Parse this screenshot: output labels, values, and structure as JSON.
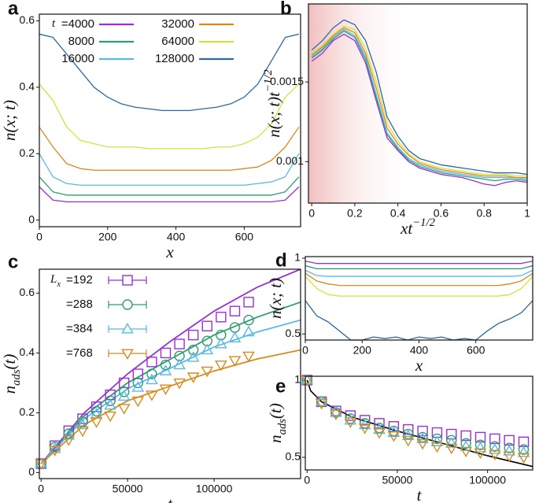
{
  "chart_data": [
    {
      "type": "line",
      "label": "a",
      "xlabel": {
        "text": "x"
      },
      "ylabel": {
        "text": "n(x; t)"
      },
      "xlim": [
        0,
        765
      ],
      "ylim": [
        -0.02,
        0.62
      ],
      "xticks": [
        0,
        200,
        400,
        600
      ],
      "yticks": [
        0,
        0.2,
        0.4,
        0.6
      ],
      "legend_prefix": {
        "text": "t"
      },
      "x": [
        0,
        40,
        80,
        120,
        160,
        200,
        240,
        280,
        320,
        360,
        400,
        440,
        480,
        520,
        560,
        600,
        640,
        680,
        720,
        760
      ],
      "series": [
        {
          "name": "=4000",
          "color": "#9a30d8",
          "values": [
            0.1,
            0.06,
            0.055,
            0.055,
            0.055,
            0.055,
            0.055,
            0.055,
            0.055,
            0.055,
            0.055,
            0.055,
            0.055,
            0.055,
            0.055,
            0.055,
            0.055,
            0.055,
            0.06,
            0.1
          ]
        },
        {
          "name": "8000",
          "color": "#2e9e70",
          "values": [
            0.13,
            0.085,
            0.075,
            0.075,
            0.075,
            0.075,
            0.075,
            0.075,
            0.075,
            0.075,
            0.075,
            0.075,
            0.075,
            0.075,
            0.075,
            0.075,
            0.075,
            0.075,
            0.085,
            0.13
          ]
        },
        {
          "name": "16000",
          "color": "#58b9e8",
          "values": [
            0.2,
            0.13,
            0.11,
            0.105,
            0.105,
            0.105,
            0.105,
            0.105,
            0.105,
            0.105,
            0.105,
            0.105,
            0.105,
            0.105,
            0.105,
            0.105,
            0.11,
            0.115,
            0.13,
            0.2
          ]
        },
        {
          "name": "32000",
          "color": "#d88a1c",
          "values": [
            0.28,
            0.22,
            0.17,
            0.155,
            0.15,
            0.15,
            0.15,
            0.15,
            0.15,
            0.15,
            0.15,
            0.15,
            0.15,
            0.15,
            0.15,
            0.155,
            0.16,
            0.18,
            0.22,
            0.28
          ]
        },
        {
          "name": "64000",
          "color": "#d8e03c",
          "values": [
            0.41,
            0.36,
            0.28,
            0.24,
            0.23,
            0.22,
            0.22,
            0.22,
            0.215,
            0.215,
            0.215,
            0.215,
            0.215,
            0.22,
            0.22,
            0.23,
            0.25,
            0.29,
            0.37,
            0.41
          ]
        },
        {
          "name": "128000",
          "color": "#2a68a6",
          "values": [
            0.56,
            0.55,
            0.5,
            0.45,
            0.4,
            0.37,
            0.35,
            0.34,
            0.335,
            0.33,
            0.33,
            0.33,
            0.335,
            0.34,
            0.35,
            0.37,
            0.41,
            0.48,
            0.55,
            0.56
          ]
        }
      ]
    },
    {
      "type": "line",
      "label": "b",
      "xlabel": {
        "text": "xt",
        "sup": "−1/2"
      },
      "ylabel": {
        "text": "n(x; t)t",
        "sup": "−1/2"
      },
      "xlim": [
        -0.015,
        1
      ],
      "ylim": [
        0.00074,
        0.00199
      ],
      "xticks": [
        0,
        0.2,
        0.4,
        0.6,
        0.8,
        1
      ],
      "yticks": [
        0.001,
        0.0015
      ],
      "x": [
        0,
        0.05,
        0.1,
        0.15,
        0.2,
        0.25,
        0.3,
        0.35,
        0.4,
        0.45,
        0.5,
        0.55,
        0.6,
        0.65,
        0.7,
        0.75,
        0.8,
        0.85,
        0.9,
        0.95,
        1
      ],
      "series": [
        {
          "color": "#9a30d8",
          "values": [
            0.00163,
            0.00168,
            0.00176,
            0.0018,
            0.00176,
            0.00162,
            0.00138,
            0.00115,
            0.00107,
            0.001,
            0.00096,
            0.00094,
            0.00092,
            0.00091,
            0.0009,
            0.00088,
            0.00086,
            0.00085,
            0.00087,
            0.00088,
            0.00087
          ]
        },
        {
          "color": "#2e9e70",
          "values": [
            0.00165,
            0.0017,
            0.00177,
            0.00182,
            0.00178,
            0.00164,
            0.0014,
            0.00117,
            0.00108,
            0.00101,
            0.00097,
            0.00095,
            0.00093,
            0.00092,
            0.00091,
            0.0009,
            0.00089,
            0.00088,
            0.00089,
            0.00089,
            0.00088
          ]
        },
        {
          "color": "#58b9e8",
          "values": [
            0.00166,
            0.00171,
            0.00178,
            0.00183,
            0.00179,
            0.00166,
            0.00142,
            0.00118,
            0.00109,
            0.00102,
            0.00098,
            0.00096,
            0.00094,
            0.00093,
            0.00092,
            0.00091,
            0.0009,
            0.0009,
            0.0009,
            0.0009,
            0.00089
          ]
        },
        {
          "color": "#d88a1c",
          "values": [
            0.00167,
            0.00172,
            0.00179,
            0.00184,
            0.00181,
            0.00168,
            0.00146,
            0.00121,
            0.00111,
            0.00104,
            0.00099,
            0.00097,
            0.00095,
            0.00094,
            0.00093,
            0.00092,
            0.00091,
            0.00091,
            0.00091,
            0.0009,
            0.0009
          ]
        },
        {
          "color": "#d8e03c",
          "values": [
            0.00168,
            0.00173,
            0.0018,
            0.00185,
            0.00183,
            0.00171,
            0.0015,
            0.00124,
            0.00113,
            0.00105,
            0.001,
            0.00098,
            0.00096,
            0.00095,
            0.00094,
            0.00093,
            0.00092,
            0.00092,
            0.00092,
            0.00091,
            0.00091
          ]
        },
        {
          "color": "#2a68a6",
          "values": [
            0.0017,
            0.00176,
            0.00184,
            0.00189,
            0.00186,
            0.00176,
            0.00156,
            0.00128,
            0.00116,
            0.00107,
            0.00102,
            0.001,
            0.00098,
            0.00097,
            0.00096,
            0.00095,
            0.00094,
            0.00093,
            0.00093,
            0.00093,
            0.00092
          ]
        }
      ]
    },
    {
      "type": "scatter",
      "label": "c",
      "xlabel": {
        "text": "t"
      },
      "ylabel": {
        "text": "n",
        "sub": "ads",
        "after": "(t)"
      },
      "xlim": [
        -1000,
        150000
      ],
      "ylim": [
        -0.02,
        0.68
      ],
      "xticks": [
        0,
        50000,
        100000
      ],
      "yticks": [
        0,
        0.2,
        0.4,
        0.6
      ],
      "legend_prefix": {
        "text": "L",
        "sub": "x"
      },
      "x": [
        0,
        8000,
        16000,
        24000,
        32000,
        40000,
        48000,
        56000,
        64000,
        72000,
        80000,
        88000,
        96000,
        104000,
        112000,
        120000
      ],
      "series": [
        {
          "name": "=192",
          "color": "#9a30d8",
          "marker": "square",
          "values": [
            0.03,
            0.09,
            0.14,
            0.18,
            0.22,
            0.26,
            0.3,
            0.33,
            0.37,
            0.4,
            0.43,
            0.46,
            0.49,
            0.52,
            0.54,
            0.57
          ],
          "fit": {
            "x": [
              0,
              25000,
              50000,
              75000,
              100000,
              125000,
              150000
            ],
            "values": [
              0.03,
              0.2,
              0.33,
              0.44,
              0.54,
              0.62,
              0.68
            ]
          }
        },
        {
          "name": "=288",
          "color": "#2e9e70",
          "marker": "circle",
          "values": [
            0.03,
            0.085,
            0.13,
            0.17,
            0.205,
            0.24,
            0.27,
            0.3,
            0.33,
            0.36,
            0.39,
            0.41,
            0.44,
            0.46,
            0.485,
            0.51
          ],
          "fit": {
            "x": [
              0,
              25000,
              50000,
              75000,
              100000,
              125000,
              150000
            ],
            "values": [
              0.03,
              0.19,
              0.3,
              0.38,
              0.46,
              0.52,
              0.57
            ]
          }
        },
        {
          "name": "=384",
          "color": "#58b9e8",
          "marker": "triangle-up",
          "values": [
            0.03,
            0.08,
            0.125,
            0.16,
            0.195,
            0.225,
            0.255,
            0.285,
            0.31,
            0.34,
            0.36,
            0.385,
            0.41,
            0.43,
            0.45,
            0.47
          ],
          "fit": {
            "x": [
              0,
              25000,
              50000,
              75000,
              100000,
              125000,
              150000
            ],
            "values": [
              0.03,
              0.18,
              0.28,
              0.35,
              0.42,
              0.47,
              0.51
            ]
          }
        },
        {
          "name": "=768",
          "color": "#d88a1c",
          "marker": "triangle-down",
          "values": [
            0.03,
            0.075,
            0.11,
            0.14,
            0.17,
            0.19,
            0.215,
            0.24,
            0.26,
            0.28,
            0.3,
            0.32,
            0.34,
            0.36,
            0.375,
            0.39
          ],
          "fit": {
            "x": [
              0,
              25000,
              50000,
              75000,
              100000,
              125000,
              150000
            ],
            "values": [
              0.03,
              0.16,
              0.24,
              0.29,
              0.34,
              0.38,
              0.41
            ]
          }
        }
      ]
    },
    {
      "type": "line",
      "label": "d",
      "xlabel": {
        "text": "x"
      },
      "ylabel": {
        "text": "n(x; t)"
      },
      "xlim": [
        0,
        800
      ],
      "ylim": [
        0.46,
        1.01
      ],
      "xticks": [
        0,
        200,
        400,
        600
      ],
      "yticks": [
        0.5,
        1
      ],
      "x": [
        0,
        40,
        80,
        120,
        160,
        200,
        240,
        280,
        320,
        360,
        400,
        440,
        480,
        520,
        560,
        600,
        640,
        680,
        720,
        760,
        800
      ],
      "series": [
        {
          "color": "#9a30d8",
          "values": [
            0.98,
            0.965,
            0.965,
            0.965,
            0.965,
            0.965,
            0.965,
            0.965,
            0.965,
            0.965,
            0.965,
            0.965,
            0.965,
            0.965,
            0.965,
            0.965,
            0.965,
            0.965,
            0.965,
            0.965,
            0.98
          ]
        },
        {
          "color": "#2e9e70",
          "values": [
            0.95,
            0.93,
            0.93,
            0.93,
            0.93,
            0.93,
            0.93,
            0.93,
            0.93,
            0.93,
            0.93,
            0.93,
            0.93,
            0.93,
            0.93,
            0.93,
            0.93,
            0.93,
            0.93,
            0.93,
            0.95
          ]
        },
        {
          "color": "#58b9e8",
          "values": [
            0.92,
            0.885,
            0.88,
            0.88,
            0.88,
            0.88,
            0.88,
            0.88,
            0.88,
            0.88,
            0.88,
            0.88,
            0.88,
            0.88,
            0.88,
            0.88,
            0.88,
            0.88,
            0.88,
            0.885,
            0.92
          ]
        },
        {
          "color": "#d88a1c",
          "values": [
            0.9,
            0.85,
            0.83,
            0.82,
            0.82,
            0.82,
            0.82,
            0.82,
            0.82,
            0.82,
            0.82,
            0.82,
            0.82,
            0.82,
            0.82,
            0.82,
            0.82,
            0.82,
            0.83,
            0.85,
            0.9
          ]
        },
        {
          "color": "#d8e03c",
          "values": [
            0.88,
            0.8,
            0.76,
            0.75,
            0.75,
            0.75,
            0.75,
            0.75,
            0.75,
            0.75,
            0.75,
            0.75,
            0.75,
            0.75,
            0.75,
            0.75,
            0.75,
            0.75,
            0.76,
            0.8,
            0.88
          ]
        },
        {
          "color": "#2a68a6",
          "values": [
            0.72,
            0.62,
            0.58,
            0.52,
            0.46,
            0.46,
            0.48,
            0.47,
            0.48,
            0.46,
            0.48,
            0.47,
            0.48,
            0.46,
            0.47,
            0.46,
            0.52,
            0.57,
            0.6,
            0.64,
            0.72
          ]
        }
      ]
    },
    {
      "type": "scatter",
      "label": "e",
      "xlabel": {
        "text": "t"
      },
      "ylabel": {
        "text": "n",
        "sub": "ads",
        "after": "(t)"
      },
      "xlim": [
        -1000,
        125000
      ],
      "ylim": [
        0.418,
        1.025
      ],
      "xticks": [
        0,
        50000,
        100000
      ],
      "yticks": [
        0.5,
        1
      ],
      "x": [
        0,
        8000,
        16000,
        24000,
        32000,
        40000,
        48000,
        56000,
        64000,
        72000,
        80000,
        88000,
        96000,
        104000,
        112000,
        120000
      ],
      "series": [
        {
          "color": "#9a30d8",
          "marker": "square",
          "values": [
            1,
            0.86,
            0.8,
            0.77,
            0.74,
            0.72,
            0.7,
            0.68,
            0.67,
            0.66,
            0.65,
            0.64,
            0.63,
            0.62,
            0.61,
            0.6
          ]
        },
        {
          "color": "#2e9e70",
          "marker": "circle",
          "values": [
            1,
            0.86,
            0.79,
            0.75,
            0.72,
            0.69,
            0.67,
            0.65,
            0.63,
            0.62,
            0.61,
            0.59,
            0.58,
            0.57,
            0.56,
            0.55
          ]
        },
        {
          "color": "#58b9e8",
          "marker": "triangle-up",
          "values": [
            1,
            0.86,
            0.79,
            0.74,
            0.71,
            0.68,
            0.66,
            0.64,
            0.62,
            0.6,
            0.59,
            0.57,
            0.56,
            0.55,
            0.54,
            0.53
          ]
        },
        {
          "color": "#d88a1c",
          "marker": "triangle-down",
          "values": [
            1,
            0.85,
            0.78,
            0.73,
            0.69,
            0.66,
            0.64,
            0.61,
            0.59,
            0.57,
            0.56,
            0.54,
            0.53,
            0.52,
            0.51,
            0.5
          ]
        }
      ],
      "curve": {
        "color": "#000000",
        "x": [
          0,
          2000,
          8000,
          25000,
          50000,
          75000,
          100000,
          125000
        ],
        "values": [
          1,
          0.93,
          0.86,
          0.76,
          0.67,
          0.59,
          0.51,
          0.44
        ]
      }
    }
  ]
}
